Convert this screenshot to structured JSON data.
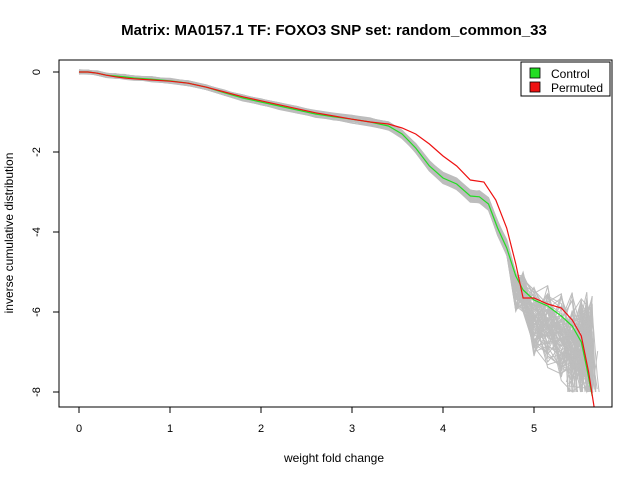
{
  "chart_data": {
    "type": "line",
    "title": "Matrix: MA0157.1 TF: FOXO3 SNP set: random_common_33",
    "xlabel": "weight fold change",
    "ylabel": "inverse cumulative distribution",
    "xlim": [
      0,
      5.7
    ],
    "ylim": [
      -8.1,
      0.1
    ],
    "x_ticks": [
      0,
      1,
      2,
      3,
      4,
      5
    ],
    "y_ticks": [
      0,
      -2,
      -4,
      -6,
      -8
    ],
    "grid": false,
    "legend_position": "top-right",
    "legend": [
      {
        "label": "Control",
        "color": "#22dd22"
      },
      {
        "label": "Permuted",
        "color": "#ee1111"
      }
    ],
    "colors": {
      "control": "#22dd22",
      "permuted": "#ee1111",
      "background_runs": "#bdbdbd"
    },
    "series": [
      {
        "name": "Control",
        "color": "#22dd22",
        "points": [
          [
            0.0,
            0.0
          ],
          [
            0.1,
            0.0
          ],
          [
            0.2,
            -0.03
          ],
          [
            0.3,
            -0.08
          ],
          [
            0.4,
            -0.1
          ],
          [
            0.5,
            -0.12
          ],
          [
            0.6,
            -0.15
          ],
          [
            0.8,
            -0.18
          ],
          [
            1.0,
            -0.22
          ],
          [
            1.2,
            -0.28
          ],
          [
            1.4,
            -0.38
          ],
          [
            1.6,
            -0.52
          ],
          [
            1.8,
            -0.65
          ],
          [
            2.0,
            -0.75
          ],
          [
            2.2,
            -0.85
          ],
          [
            2.4,
            -0.95
          ],
          [
            2.6,
            -1.05
          ],
          [
            2.8,
            -1.12
          ],
          [
            3.0,
            -1.18
          ],
          [
            3.2,
            -1.25
          ],
          [
            3.4,
            -1.35
          ],
          [
            3.55,
            -1.55
          ],
          [
            3.7,
            -1.9
          ],
          [
            3.85,
            -2.35
          ],
          [
            4.0,
            -2.65
          ],
          [
            4.15,
            -2.8
          ],
          [
            4.3,
            -3.1
          ],
          [
            4.4,
            -3.12
          ],
          [
            4.5,
            -3.3
          ],
          [
            4.6,
            -3.9
          ],
          [
            4.7,
            -4.4
          ],
          [
            4.8,
            -5.1
          ],
          [
            4.88,
            -5.45
          ],
          [
            5.0,
            -5.7
          ],
          [
            5.15,
            -5.85
          ],
          [
            5.3,
            -6.1
          ],
          [
            5.42,
            -6.35
          ],
          [
            5.52,
            -6.75
          ],
          [
            5.58,
            -7.4
          ],
          [
            5.64,
            -8.1
          ]
        ]
      },
      {
        "name": "Permuted",
        "color": "#ee1111",
        "points": [
          [
            0.0,
            0.0
          ],
          [
            0.1,
            0.0
          ],
          [
            0.2,
            -0.03
          ],
          [
            0.3,
            -0.08
          ],
          [
            0.4,
            -0.12
          ],
          [
            0.5,
            -0.15
          ],
          [
            0.6,
            -0.17
          ],
          [
            0.8,
            -0.2
          ],
          [
            1.0,
            -0.23
          ],
          [
            1.2,
            -0.28
          ],
          [
            1.4,
            -0.38
          ],
          [
            1.6,
            -0.5
          ],
          [
            1.8,
            -0.62
          ],
          [
            2.0,
            -0.72
          ],
          [
            2.2,
            -0.82
          ],
          [
            2.4,
            -0.92
          ],
          [
            2.6,
            -1.02
          ],
          [
            2.8,
            -1.1
          ],
          [
            3.0,
            -1.18
          ],
          [
            3.2,
            -1.25
          ],
          [
            3.4,
            -1.3
          ],
          [
            3.55,
            -1.4
          ],
          [
            3.7,
            -1.55
          ],
          [
            3.85,
            -1.8
          ],
          [
            4.0,
            -2.1
          ],
          [
            4.15,
            -2.35
          ],
          [
            4.3,
            -2.7
          ],
          [
            4.45,
            -2.75
          ],
          [
            4.58,
            -3.2
          ],
          [
            4.7,
            -3.9
          ],
          [
            4.8,
            -4.8
          ],
          [
            4.88,
            -5.65
          ],
          [
            5.0,
            -5.65
          ],
          [
            5.15,
            -5.8
          ],
          [
            5.3,
            -5.9
          ],
          [
            5.42,
            -6.2
          ],
          [
            5.52,
            -6.6
          ],
          [
            5.6,
            -7.5
          ],
          [
            5.66,
            -8.5
          ]
        ]
      }
    ]
  }
}
